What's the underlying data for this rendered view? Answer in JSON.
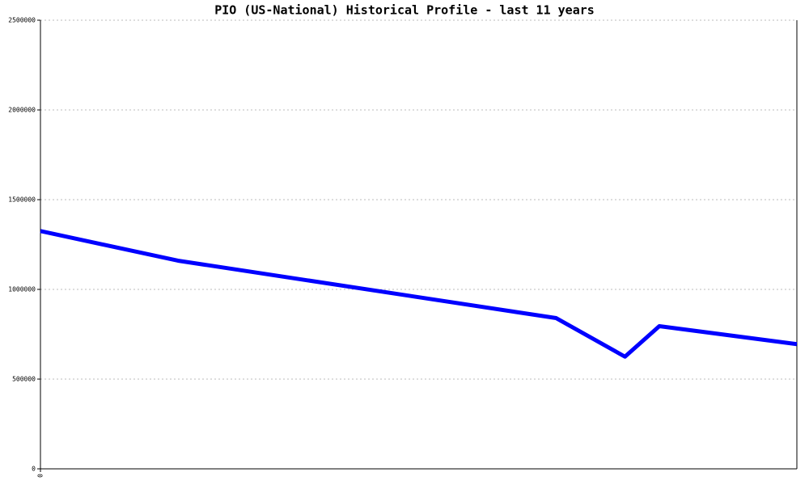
{
  "chart_data": {
    "type": "line",
    "title": "PIO (US-National) Historical Profile - last 11 years",
    "x": [
      0,
      2,
      7.5,
      8.5,
      9,
      11
    ],
    "series": [
      {
        "name": "PIO",
        "color": "#0000ff",
        "values": [
          1325000,
          1160000,
          840000,
          625000,
          795000,
          695000
        ]
      }
    ],
    "xlim": [
      0,
      11
    ],
    "xticks": [
      0
    ],
    "ylim": [
      0,
      2500000
    ],
    "yticks": [
      0,
      500000,
      1000000,
      1500000,
      2000000,
      2500000
    ],
    "grid": true
  }
}
